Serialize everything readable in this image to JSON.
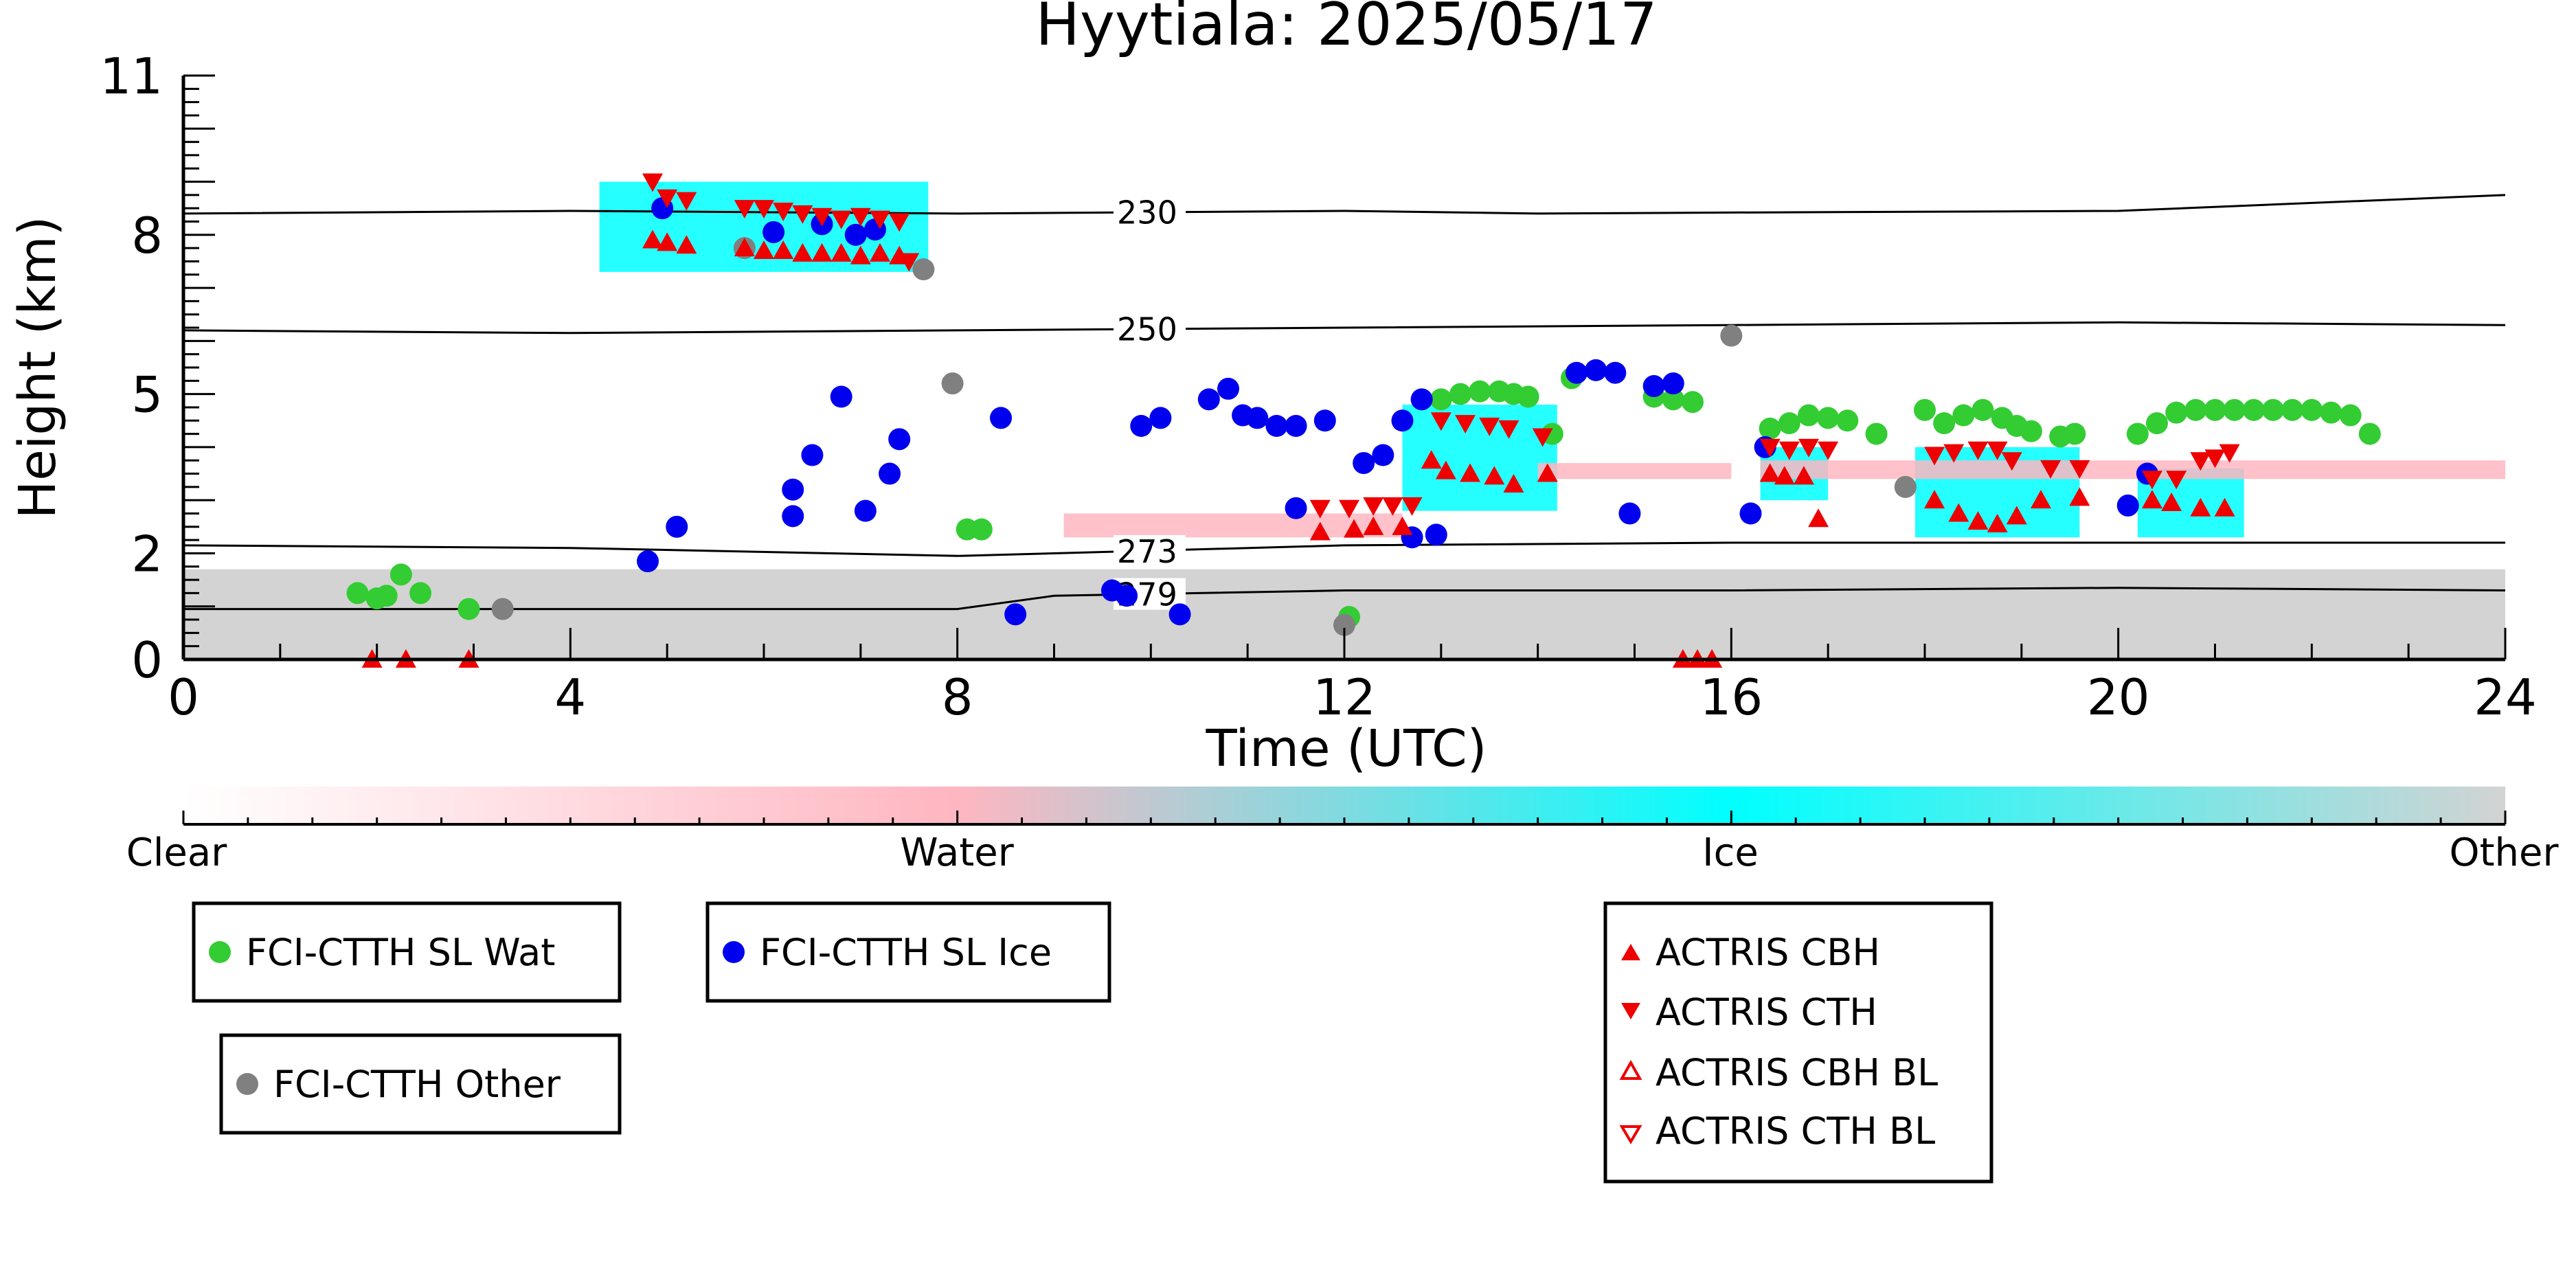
{
  "chart_data": {
    "type": "scatter",
    "title": "Hyytiala: 2025/05/17",
    "xlabel": "Time (UTC)",
    "ylabel": "Height (km)",
    "xlim": [
      0,
      24
    ],
    "ylim": [
      0,
      11
    ],
    "x_ticks": [
      "0",
      "4",
      "8",
      "12",
      "16",
      "20",
      "24"
    ],
    "x_tick_values": [
      0,
      4,
      8,
      12,
      16,
      20,
      24
    ],
    "y_ticks": [
      "0",
      "2",
      "5",
      "8",
      "11"
    ],
    "y_tick_values": [
      0,
      2,
      5,
      8,
      11
    ],
    "grid": false,
    "colorbar": {
      "labels": [
        "Clear",
        "Water",
        "Ice",
        "Other"
      ],
      "colors": [
        "#ffffff",
        "#ffb6c1",
        "#00ffff",
        "#d3d3d3"
      ]
    },
    "isotherms": [
      {
        "label": "230",
        "x": [
          0,
          4,
          8,
          12,
          14,
          16,
          20,
          24
        ],
        "y": [
          8.4,
          8.45,
          8.4,
          8.45,
          8.4,
          8.42,
          8.45,
          8.75
        ]
      },
      {
        "label": "250",
        "x": [
          0,
          4,
          8,
          12,
          16,
          20,
          24
        ],
        "y": [
          6.2,
          6.15,
          6.2,
          6.25,
          6.3,
          6.35,
          6.3
        ]
      },
      {
        "label": "273",
        "x": [
          0,
          4,
          8,
          9,
          12,
          16,
          20,
          24
        ],
        "y": [
          2.15,
          2.1,
          1.95,
          2.0,
          2.15,
          2.2,
          2.2,
          2.2
        ]
      },
      {
        "label": "279",
        "x": [
          0,
          4,
          8,
          9,
          12,
          16,
          20,
          24
        ],
        "y": [
          0.95,
          0.95,
          0.95,
          1.2,
          1.3,
          1.3,
          1.35,
          1.3
        ]
      }
    ],
    "series": [
      {
        "name": "FCI-CTTH SL Wat",
        "color": "#33cc33",
        "marker": "circle",
        "x": [
          1.8,
          2.0,
          2.1,
          2.25,
          2.45,
          2.95,
          8.1,
          8.25,
          12.05,
          13.0,
          13.2,
          13.4,
          13.6,
          13.75,
          13.9,
          14.15,
          14.35,
          15.2,
          15.4,
          15.6,
          16.4,
          16.6,
          16.8,
          17.0,
          17.2,
          17.5,
          17.8,
          18.0,
          18.2,
          18.4,
          18.6,
          18.8,
          18.95,
          19.1,
          19.4,
          19.55,
          20.2,
          20.4,
          20.6,
          20.8,
          21.0,
          21.2,
          21.4,
          21.6,
          21.8,
          22.0,
          22.2,
          22.4,
          22.6
        ],
        "y": [
          1.25,
          1.15,
          1.2,
          1.6,
          1.25,
          0.95,
          2.45,
          2.45,
          0.8,
          4.9,
          5.0,
          5.05,
          5.05,
          5.0,
          4.95,
          4.25,
          5.3,
          4.95,
          4.9,
          4.85,
          4.35,
          4.45,
          4.6,
          4.55,
          4.5,
          4.25,
          3.25,
          4.7,
          4.45,
          4.6,
          4.7,
          4.55,
          4.4,
          4.3,
          4.2,
          4.25,
          4.25,
          4.45,
          4.65,
          4.7,
          4.7,
          4.7,
          4.7,
          4.7,
          4.7,
          4.7,
          4.65,
          4.6,
          4.25
        ]
      },
      {
        "name": "FCI-CTTH SL Ice",
        "color": "#0000ee",
        "marker": "circle",
        "x": [
          4.95,
          5.1,
          6.1,
          6.3,
          6.6,
          6.95,
          7.05,
          7.15,
          4.8,
          6.3,
          6.5,
          6.8,
          7.3,
          7.4,
          8.45,
          8.6,
          9.6,
          9.75,
          9.9,
          10.1,
          10.3,
          10.6,
          10.8,
          10.95,
          11.1,
          11.3,
          11.5,
          11.5,
          11.8,
          12.2,
          12.4,
          12.6,
          12.7,
          12.8,
          12.95,
          14.4,
          14.6,
          14.8,
          14.95,
          15.2,
          15.4,
          16.2,
          16.35,
          20.1,
          20.3
        ],
        "y": [
          8.5,
          2.5,
          8.05,
          3.2,
          8.2,
          8.0,
          2.8,
          8.1,
          1.85,
          2.7,
          3.85,
          4.95,
          3.5,
          4.15,
          4.55,
          0.85,
          1.3,
          1.2,
          4.4,
          4.55,
          0.85,
          4.9,
          5.1,
          4.6,
          4.55,
          4.4,
          2.85,
          4.4,
          4.5,
          3.7,
          3.85,
          4.5,
          2.3,
          4.9,
          2.35,
          5.4,
          5.45,
          5.4,
          2.75,
          5.15,
          5.2,
          2.75,
          4.0,
          2.9,
          3.5
        ]
      },
      {
        "name": "FCI-CTTH Other",
        "color": "#808080",
        "marker": "circle",
        "x": [
          3.3,
          5.8,
          7.65,
          7.95,
          12.0,
          16.0,
          17.8
        ],
        "y": [
          0.95,
          7.75,
          7.35,
          5.2,
          0.65,
          6.1,
          3.25
        ]
      },
      {
        "name": "ACTRIS CBH",
        "color": "#ee0000",
        "marker": "triangle-up",
        "x": [
          1.95,
          2.3,
          2.95,
          4.85,
          5.0,
          5.2,
          5.8,
          6.0,
          6.2,
          6.4,
          6.6,
          6.8,
          7.0,
          7.2,
          7.4,
          11.75,
          12.1,
          12.3,
          12.6,
          12.9,
          13.05,
          13.3,
          13.55,
          13.75,
          14.1,
          15.5,
          15.65,
          15.8,
          16.4,
          16.55,
          16.75,
          16.9,
          18.1,
          18.35,
          18.55,
          18.75,
          18.95,
          19.2,
          19.6,
          20.35,
          20.55,
          20.85,
          21.1
        ],
        "y": [
          0.0,
          0.0,
          0.0,
          7.9,
          7.85,
          7.8,
          7.75,
          7.7,
          7.7,
          7.65,
          7.65,
          7.65,
          7.6,
          7.65,
          7.6,
          2.4,
          2.45,
          2.5,
          2.5,
          3.75,
          3.55,
          3.5,
          3.45,
          3.3,
          3.5,
          0.0,
          0.0,
          0.0,
          3.5,
          3.45,
          3.45,
          2.65,
          3.0,
          2.75,
          2.6,
          2.55,
          2.7,
          3.0,
          3.05,
          3.0,
          2.95,
          2.85,
          2.85
        ]
      },
      {
        "name": "ACTRIS CTH",
        "color": "#ee0000",
        "marker": "triangle-down",
        "x": [
          4.85,
          5.0,
          5.2,
          5.8,
          6.0,
          6.2,
          6.4,
          6.6,
          6.8,
          7.0,
          7.2,
          7.4,
          7.5,
          11.75,
          12.05,
          12.3,
          12.5,
          12.7,
          13.0,
          13.25,
          13.5,
          13.7,
          14.05,
          16.4,
          16.6,
          16.8,
          17.0,
          18.1,
          18.3,
          18.55,
          18.75,
          18.9,
          19.3,
          19.6,
          20.35,
          20.6,
          20.85,
          21.0,
          21.15
        ],
        "y": [
          9.0,
          8.7,
          8.65,
          8.5,
          8.5,
          8.45,
          8.4,
          8.35,
          8.3,
          8.35,
          8.3,
          8.25,
          7.5,
          2.85,
          2.85,
          2.9,
          2.9,
          2.9,
          4.5,
          4.45,
          4.4,
          4.35,
          4.2,
          4.0,
          3.95,
          4.0,
          3.95,
          3.85,
          3.9,
          3.95,
          3.95,
          3.75,
          3.6,
          3.6,
          3.4,
          3.4,
          3.75,
          3.8,
          3.9
        ]
      },
      {
        "name": "ACTRIS CBH BL",
        "color": "#ee0000",
        "marker": "triangle-up-open",
        "x": [],
        "y": []
      },
      {
        "name": "ACTRIS CTH BL",
        "color": "#ee0000",
        "marker": "triangle-down-open",
        "x": [],
        "y": []
      }
    ],
    "classification_regions": [
      {
        "class": "Ice",
        "color": "#00ffff",
        "x0": 4.3,
        "x1": 7.7,
        "y0": 7.3,
        "y1": 9.0
      },
      {
        "class": "Ice",
        "color": "#00ffff",
        "x0": 12.6,
        "x1": 14.2,
        "y0": 2.8,
        "y1": 4.8
      },
      {
        "class": "Ice",
        "color": "#00ffff",
        "x0": 16.3,
        "x1": 17.0,
        "y0": 3.0,
        "y1": 4.0
      },
      {
        "class": "Ice",
        "color": "#00ffff",
        "x0": 17.9,
        "x1": 19.6,
        "y0": 2.3,
        "y1": 4.0
      },
      {
        "class": "Ice",
        "color": "#00ffff",
        "x0": 20.2,
        "x1": 21.3,
        "y0": 2.3,
        "y1": 3.6
      },
      {
        "class": "Water",
        "color": "#ffb6c1",
        "x0": 9.1,
        "x1": 12.6,
        "y0": 2.3,
        "y1": 2.75
      },
      {
        "class": "Water",
        "color": "#ffb6c1",
        "x0": 14.0,
        "x1": 16.0,
        "y0": 3.4,
        "y1": 3.7
      },
      {
        "class": "Water",
        "color": "#ffb6c1",
        "x0": 16.3,
        "x1": 24.0,
        "y0": 3.4,
        "y1": 3.75
      },
      {
        "class": "Other",
        "color": "#d3d3d3",
        "x0": 0.0,
        "x1": 24.0,
        "y0": 0.0,
        "y1": 1.7
      }
    ]
  }
}
